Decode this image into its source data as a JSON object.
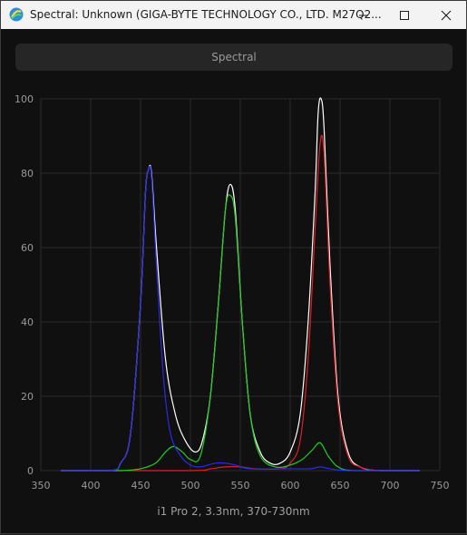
{
  "window": {
    "title": "Spectral: Unknown (GIGA-BYTE TECHNOLOGY CO., LTD. M27Q2...",
    "controls": {
      "minimize": "minimize-icon",
      "maximize": "maximize-icon",
      "close": "close-icon"
    }
  },
  "header": {
    "label": "Spectral"
  },
  "caption": "i1 Pro 2, 3.3nm, 370-730nm",
  "colors": {
    "background": "#101010",
    "grid": "#2a2a2a",
    "white": "#ffffff",
    "red": "#e02020",
    "green": "#22cc22",
    "blue": "#2a2aee"
  },
  "chart_data": {
    "type": "line",
    "xlim": [
      350,
      750
    ],
    "ylim": [
      0,
      100
    ],
    "xticks": [
      "350",
      "400",
      "450",
      "500",
      "550",
      "600",
      "650",
      "700",
      "750"
    ],
    "yticks": [
      "0",
      "20",
      "40",
      "60",
      "80",
      "100"
    ],
    "grid": true,
    "series": [
      {
        "color": "#ffffff",
        "points": [
          [
            370,
            0
          ],
          [
            420,
            0
          ],
          [
            430,
            2
          ],
          [
            440,
            10
          ],
          [
            450,
            45
          ],
          [
            455,
            75
          ],
          [
            458,
            81
          ],
          [
            461,
            80
          ],
          [
            466,
            60
          ],
          [
            475,
            30
          ],
          [
            485,
            15
          ],
          [
            495,
            8
          ],
          [
            505,
            5
          ],
          [
            512,
            8
          ],
          [
            520,
            20
          ],
          [
            528,
            45
          ],
          [
            535,
            70
          ],
          [
            540,
            77
          ],
          [
            545,
            70
          ],
          [
            552,
            40
          ],
          [
            560,
            15
          ],
          [
            570,
            5
          ],
          [
            580,
            2
          ],
          [
            590,
            2
          ],
          [
            600,
            5
          ],
          [
            610,
            15
          ],
          [
            618,
            40
          ],
          [
            625,
            75
          ],
          [
            628,
            96
          ],
          [
            631,
            100
          ],
          [
            634,
            92
          ],
          [
            640,
            55
          ],
          [
            648,
            20
          ],
          [
            658,
            5
          ],
          [
            670,
            1
          ],
          [
            690,
            0
          ],
          [
            730,
            0
          ]
        ]
      },
      {
        "color": "#e02020",
        "points": [
          [
            370,
            0
          ],
          [
            500,
            0
          ],
          [
            520,
            0.5
          ],
          [
            535,
            1
          ],
          [
            550,
            1
          ],
          [
            565,
            0.5
          ],
          [
            590,
            0.5
          ],
          [
            600,
            2
          ],
          [
            610,
            8
          ],
          [
            618,
            30
          ],
          [
            625,
            65
          ],
          [
            630,
            88
          ],
          [
            634,
            85
          ],
          [
            640,
            50
          ],
          [
            648,
            18
          ],
          [
            658,
            4
          ],
          [
            670,
            1
          ],
          [
            690,
            0
          ],
          [
            730,
            0
          ]
        ]
      },
      {
        "color": "#22cc22",
        "points": [
          [
            370,
            0
          ],
          [
            380,
            0
          ],
          [
            400,
            0
          ],
          [
            430,
            0
          ],
          [
            450,
            0.5
          ],
          [
            465,
            2
          ],
          [
            475,
            5
          ],
          [
            483,
            6.5
          ],
          [
            492,
            5
          ],
          [
            500,
            3
          ],
          [
            510,
            4
          ],
          [
            520,
            20
          ],
          [
            528,
            45
          ],
          [
            535,
            70
          ],
          [
            540,
            74
          ],
          [
            545,
            68
          ],
          [
            552,
            40
          ],
          [
            560,
            15
          ],
          [
            570,
            4
          ],
          [
            585,
            1
          ],
          [
            600,
            1.5
          ],
          [
            612,
            3
          ],
          [
            622,
            5.5
          ],
          [
            630,
            7.5
          ],
          [
            638,
            4
          ],
          [
            648,
            1
          ],
          [
            665,
            0
          ],
          [
            730,
            0
          ]
        ]
      },
      {
        "color": "#2a2aee",
        "points": [
          [
            370,
            0
          ],
          [
            420,
            0
          ],
          [
            430,
            2
          ],
          [
            440,
            10
          ],
          [
            450,
            45
          ],
          [
            455,
            75
          ],
          [
            458,
            81
          ],
          [
            461,
            79
          ],
          [
            466,
            55
          ],
          [
            473,
            25
          ],
          [
            480,
            10
          ],
          [
            490,
            4
          ],
          [
            500,
            1.5
          ],
          [
            510,
            1
          ],
          [
            525,
            2
          ],
          [
            535,
            2
          ],
          [
            545,
            1.5
          ],
          [
            560,
            0.5
          ],
          [
            600,
            0.5
          ],
          [
            620,
            0.5
          ],
          [
            630,
            1
          ],
          [
            640,
            0.5
          ],
          [
            660,
            0
          ],
          [
            730,
            0
          ]
        ]
      }
    ]
  }
}
